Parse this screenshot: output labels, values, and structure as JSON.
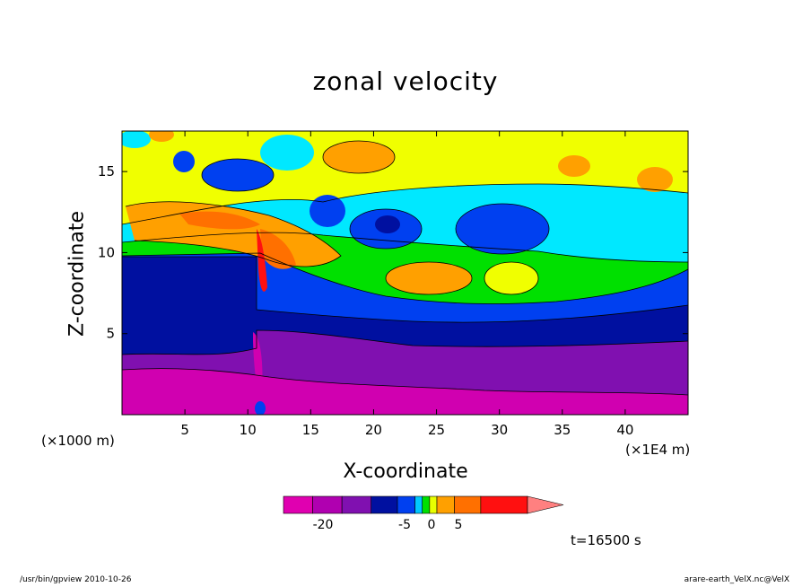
{
  "chart_data": {
    "type": "heatmap",
    "title": "zonal velocity",
    "xlabel": "X-coordinate",
    "ylabel": "Z-coordinate",
    "x_unit_label": "(×1000 m)",
    "x_scale_label": "(×1E4 m)",
    "x_ticks": [
      5,
      10,
      15,
      20,
      25,
      30,
      35,
      40
    ],
    "y_ticks": [
      5,
      10,
      15
    ],
    "xlim": [
      0,
      45
    ],
    "ylim": [
      0,
      17.5
    ],
    "time_label": "t=16500 s",
    "colorbar": {
      "tick_labels": [
        "-20",
        "-5",
        "0",
        "5"
      ],
      "tick_values": [
        -20,
        -5,
        0,
        5
      ],
      "colors": [
        "#e000b0",
        "#b000b0",
        "#8010b0",
        "#0010a0",
        "#0040f0",
        "#00c8ff",
        "#00e000",
        "#e8ff00",
        "#ffa000",
        "#ff7000",
        "#ff1010",
        "#ff8080"
      ]
    },
    "regions": [
      {
        "value": -25,
        "color": "#d000b0"
      },
      {
        "value": -18,
        "color": "#8010b0"
      },
      {
        "value": -12,
        "color": "#0010a0"
      },
      {
        "value": -6,
        "color": "#0040f0"
      },
      {
        "value": -2,
        "color": "#00e8ff"
      },
      {
        "value": 1,
        "color": "#00e000"
      },
      {
        "value": 3,
        "color": "#f0ff00"
      },
      {
        "value": 6,
        "color": "#ffa000"
      },
      {
        "value": 9,
        "color": "#ff7000"
      }
    ]
  },
  "footer": {
    "left": "/usr/bin/gpview   2010-10-26",
    "right": "arare-earth_VelX.nc@VelX"
  }
}
